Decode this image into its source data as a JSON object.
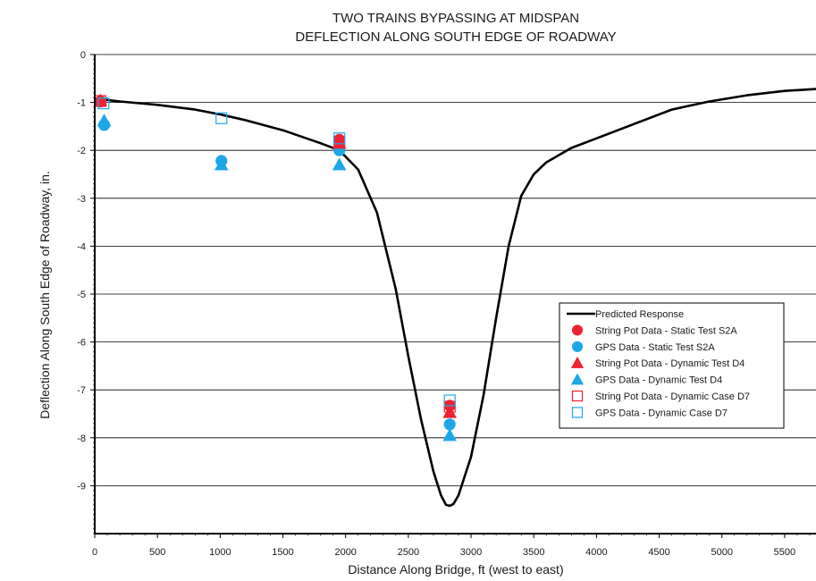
{
  "chart_data": {
    "type": "scatter",
    "title": "TWO TRAINS BYPASSING AT MIDSPAN",
    "subtitle": "DEFLECTION ALONG SOUTH EDGE OF ROADWAY",
    "xlabel": "Distance Along Bridge, ft (west to east)",
    "ylabel": "Deflection Along South Edge of Roadway, in.",
    "xlim": [
      0,
      5750
    ],
    "ylim": [
      -10,
      0
    ],
    "x_ticks": [
      0,
      500,
      1000,
      1500,
      2000,
      2500,
      3000,
      3500,
      4000,
      4500,
      5000,
      5500
    ],
    "y_ticks": [
      0,
      -1,
      -2,
      -3,
      -4,
      -5,
      -6,
      -7,
      -8,
      -9
    ],
    "grid": "horizontal",
    "legend_position": "right",
    "series": [
      {
        "name": "Predicted Response",
        "kind": "line",
        "color": "#000000",
        "x": [
          0,
          200,
          500,
          800,
          1000,
          1200,
          1500,
          1800,
          1950,
          2100,
          2250,
          2400,
          2500,
          2600,
          2700,
          2760,
          2800,
          2830,
          2860,
          2900,
          3000,
          3100,
          3200,
          3300,
          3400,
          3500,
          3600,
          3800,
          4000,
          4300,
          4600,
          4900,
          5200,
          5500,
          5750
        ],
        "y": [
          -0.92,
          -0.98,
          -1.05,
          -1.15,
          -1.25,
          -1.37,
          -1.58,
          -1.85,
          -2.0,
          -2.4,
          -3.3,
          -4.9,
          -6.3,
          -7.6,
          -8.7,
          -9.2,
          -9.4,
          -9.42,
          -9.38,
          -9.2,
          -8.4,
          -7.1,
          -5.5,
          -4.0,
          -2.95,
          -2.5,
          -2.25,
          -1.95,
          -1.75,
          -1.45,
          -1.15,
          -0.98,
          -0.85,
          -0.76,
          -0.72
        ]
      },
      {
        "name": "String Pot Data - Static Test S2A",
        "marker": "circle-filled",
        "color": "#ee2233",
        "x": [
          45,
          1950,
          2830
        ],
        "y": [
          -0.98,
          -1.78,
          -7.33
        ]
      },
      {
        "name": "GPS Data - Static Test S2A",
        "marker": "circle-filled",
        "color": "#1ea7e8",
        "x": [
          75,
          1010,
          1950,
          2830
        ],
        "y": [
          -1.47,
          -2.22,
          -2.0,
          -7.72
        ]
      },
      {
        "name": "String Pot Data - Dynamic Test D4",
        "marker": "triangle-filled",
        "color": "#ee2233",
        "x": [
          45,
          1950,
          2830
        ],
        "y": [
          -0.96,
          -1.85,
          -7.47
        ]
      },
      {
        "name": "GPS Data - Dynamic Test D4",
        "marker": "triangle-filled",
        "color": "#1ea7e8",
        "x": [
          75,
          1010,
          1950,
          2830
        ],
        "y": [
          -1.38,
          -2.3,
          -2.3,
          -7.95
        ]
      },
      {
        "name": "String Pot Data - Dynamic Case D7",
        "marker": "square-open",
        "color": "#ee2233",
        "x": [
          45,
          1950,
          2830
        ],
        "y": [
          -0.97,
          -1.82,
          -7.35
        ]
      },
      {
        "name": "GPS Data - Dynamic Case D7",
        "marker": "square-open",
        "color": "#1ea7e8",
        "x": [
          70,
          1010,
          1950,
          2830
        ],
        "y": [
          -1.02,
          -1.33,
          -1.75,
          -7.22
        ]
      }
    ]
  }
}
